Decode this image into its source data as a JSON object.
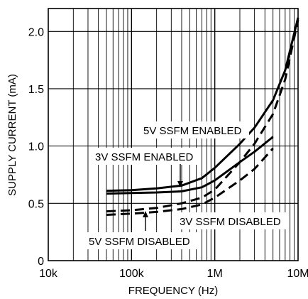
{
  "chart_data": {
    "type": "line",
    "title": "",
    "xlabel": "FREQUENCY (Hz)",
    "ylabel": "SUPPLY CURRENT (mA)",
    "xscale": "log",
    "xlim": [
      10000,
      10000000
    ],
    "ylim": [
      0,
      2.2
    ],
    "grid": true,
    "x_ticks": [
      {
        "value": 10000,
        "label": "10k"
      },
      {
        "value": 100000,
        "label": "100k"
      },
      {
        "value": 1000000,
        "label": "1M"
      },
      {
        "value": 10000000,
        "label": "10M"
      }
    ],
    "y_ticks": [
      {
        "value": 0,
        "label": "0"
      },
      {
        "value": 0.5,
        "label": "0.5"
      },
      {
        "value": 1.0,
        "label": "1.0"
      },
      {
        "value": 1.5,
        "label": "1.5"
      },
      {
        "value": 2.0,
        "label": "2.0"
      }
    ],
    "series": [
      {
        "name": "5V SSFM ENABLED",
        "style": "solid",
        "color": "#000000",
        "x": [
          50000,
          100000,
          200000,
          400000,
          700000,
          1000000,
          2000000,
          3000000,
          5000000,
          7000000,
          10000000
        ],
        "y": [
          0.61,
          0.615,
          0.63,
          0.655,
          0.72,
          0.81,
          1.02,
          1.16,
          1.4,
          1.66,
          2.12
        ]
      },
      {
        "name": "3V SSFM ENABLED",
        "style": "solid",
        "color": "#000000",
        "x": [
          50000,
          100000,
          200000,
          400000,
          700000,
          1000000,
          2000000,
          3000000,
          5000000
        ],
        "y": [
          0.585,
          0.59,
          0.595,
          0.605,
          0.64,
          0.7,
          0.86,
          0.95,
          1.08
        ]
      },
      {
        "name": "5V SSFM DISABLED",
        "style": "dashed",
        "color": "#000000",
        "x": [
          50000,
          100000,
          200000,
          400000,
          700000,
          1000000,
          2000000,
          3000000,
          5000000,
          7000000,
          10000000
        ],
        "y": [
          0.43,
          0.44,
          0.46,
          0.5,
          0.55,
          0.62,
          0.86,
          1.02,
          1.28,
          1.58,
          2.1
        ]
      },
      {
        "name": "3V SSFM DISABLED",
        "style": "dashed",
        "color": "#000000",
        "x": [
          50000,
          100000,
          200000,
          400000,
          700000,
          1000000,
          2000000,
          3000000,
          5000000
        ],
        "y": [
          0.4,
          0.41,
          0.425,
          0.45,
          0.49,
          0.55,
          0.7,
          0.8,
          0.98
        ]
      }
    ],
    "annotations": [
      {
        "text": "5V SSFM ENABLED"
      },
      {
        "text": "3V SSFM ENABLED"
      },
      {
        "text": "3V SSFM DISABLED"
      },
      {
        "text": "5V SSFM DISABLED"
      }
    ]
  }
}
